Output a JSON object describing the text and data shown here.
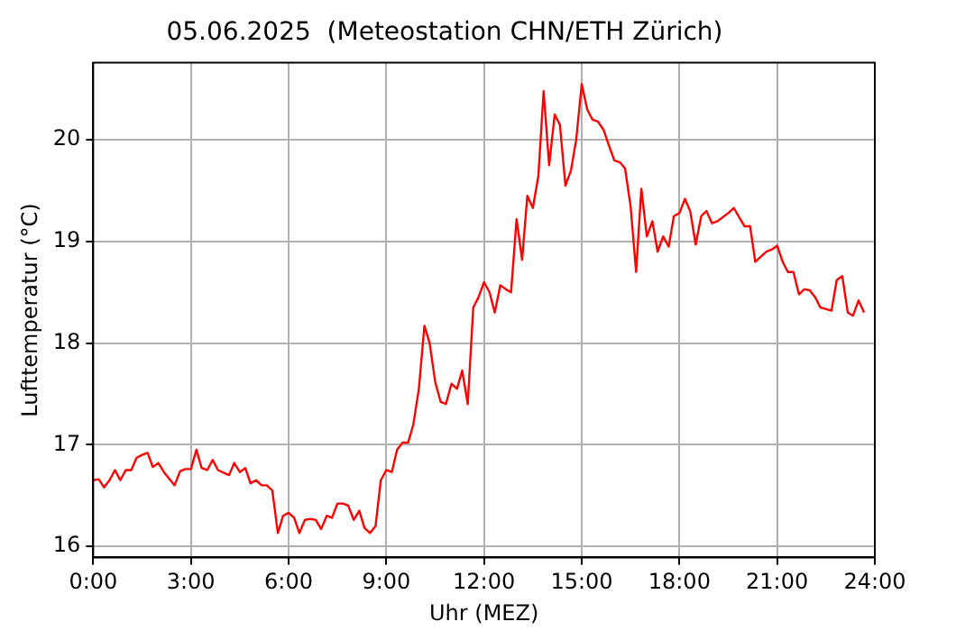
{
  "chart_data": {
    "type": "line",
    "title": "05.06.2025  (Meteostation CHN/ETH Zürich)",
    "xlabel": "Uhr (MEZ)",
    "ylabel": "Lufttemperatur (°C)",
    "x": [
      0,
      0.17,
      0.33,
      0.5,
      0.67,
      0.83,
      1,
      1.17,
      1.33,
      1.5,
      1.67,
      1.83,
      2,
      2.17,
      2.5,
      2.67,
      2.83,
      3,
      3.17,
      3.33,
      3.5,
      3.67,
      3.83,
      4.17,
      4.33,
      4.5,
      4.67,
      4.83,
      5,
      5.17,
      5.33,
      5.5,
      5.67,
      5.83,
      6,
      6.17,
      6.33,
      6.5,
      6.67,
      6.83,
      7,
      7.17,
      7.33,
      7.5,
      7.67,
      7.83,
      8,
      8.17,
      8.33,
      8.5,
      8.67,
      8.83,
      9,
      9.17,
      9.33,
      9.5,
      9.67,
      9.83,
      10,
      10.17,
      10.33,
      10.5,
      10.67,
      10.83,
      11,
      11.17,
      11.33,
      11.5,
      11.67,
      11.83,
      12,
      12.17,
      12.33,
      12.5,
      12.67,
      12.83,
      13,
      13.17,
      13.33,
      13.5,
      13.67,
      13.83,
      14,
      14.17,
      14.33,
      14.5,
      14.67,
      14.83,
      15,
      15.17,
      15.33,
      15.5,
      15.67,
      15.83,
      16,
      16.17,
      16.33,
      16.5,
      16.67,
      16.83,
      17,
      17.17,
      17.33,
      17.5,
      17.67,
      17.83,
      18,
      18.17,
      18.33,
      18.5,
      18.67,
      18.83,
      19,
      19.17,
      19.5,
      19.67,
      20,
      20.17,
      20.33,
      20.67,
      20.83,
      21,
      21.17,
      21.33,
      21.5,
      21.67,
      21.83,
      22,
      22.17,
      22.33,
      22.67,
      22.83,
      23,
      23.17,
      23.33,
      23.5,
      23.67
    ],
    "series": [
      {
        "color": "#ff0000",
        "values": [
          16.65,
          16.66,
          16.58,
          16.65,
          16.75,
          16.65,
          16.75,
          16.75,
          16.87,
          16.9,
          16.92,
          16.78,
          16.82,
          16.73,
          16.6,
          16.74,
          16.76,
          16.76,
          16.95,
          16.77,
          16.75,
          16.85,
          16.75,
          16.7,
          16.82,
          16.73,
          16.77,
          16.62,
          16.65,
          16.6,
          16.6,
          16.55,
          16.13,
          16.3,
          16.33,
          16.28,
          16.13,
          16.26,
          16.27,
          16.26,
          16.17,
          16.3,
          16.28,
          16.42,
          16.42,
          16.4,
          16.26,
          16.35,
          16.18,
          16.13,
          16.2,
          16.65,
          16.75,
          16.73,
          16.95,
          17.02,
          17.02,
          17.2,
          17.55,
          18.17,
          18,
          17.62,
          17.42,
          17.4,
          17.6,
          17.55,
          17.73,
          17.4,
          18.35,
          18.45,
          18.6,
          18.5,
          18.3,
          18.57,
          18.53,
          18.5,
          19.22,
          18.82,
          19.45,
          19.33,
          19.65,
          20.48,
          19.75,
          20.25,
          20.15,
          19.55,
          19.7,
          20,
          20.55,
          20.3,
          20.2,
          20.18,
          20.1,
          19.95,
          19.8,
          19.78,
          19.72,
          19.35,
          18.7,
          19.52,
          19.05,
          19.2,
          18.9,
          19.05,
          18.95,
          19.25,
          19.28,
          19.42,
          19.3,
          18.97,
          19.25,
          19.3,
          19.18,
          19.2,
          19.28,
          19.33,
          19.15,
          19.15,
          18.8,
          18.9,
          18.92,
          18.96,
          18.8,
          18.7,
          18.7,
          18.48,
          18.53,
          18.52,
          18.45,
          18.35,
          18.32,
          18.62,
          18.66,
          18.3,
          18.27,
          18.42,
          18.3
        ]
      }
    ],
    "xlim": [
      0,
      24
    ],
    "xticks": [
      {
        "value": 0,
        "label": "0:00"
      },
      {
        "value": 3,
        "label": "3:00"
      },
      {
        "value": 6,
        "label": "6:00"
      },
      {
        "value": 9,
        "label": "9:00"
      },
      {
        "value": 12,
        "label": "12:00"
      },
      {
        "value": 15,
        "label": "15:00"
      },
      {
        "value": 18,
        "label": "18:00"
      },
      {
        "value": 21,
        "label": "21:00"
      },
      {
        "value": 24,
        "label": "24:00"
      }
    ],
    "ylim": [
      15.89,
      20.76
    ],
    "yticks": [
      16,
      17,
      18,
      19,
      20
    ],
    "grid": true,
    "marker": "none",
    "line_style": "solid"
  }
}
